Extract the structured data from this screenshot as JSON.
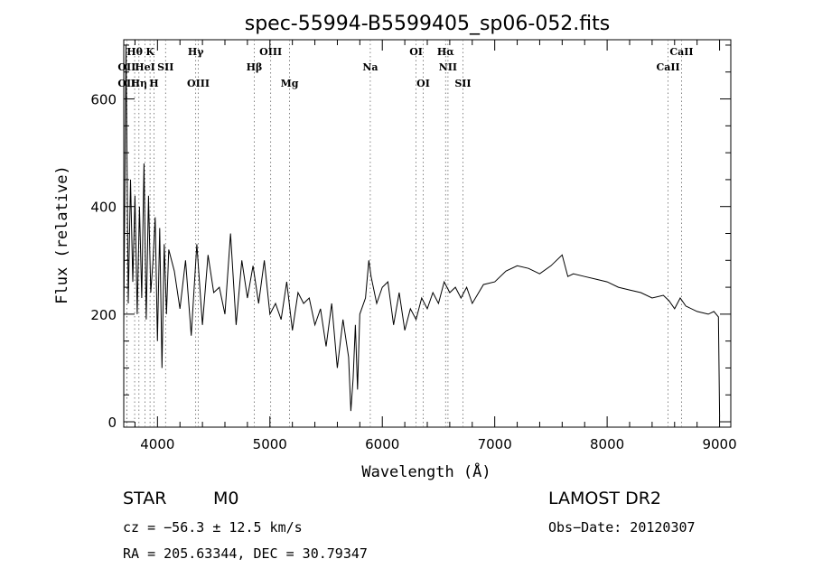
{
  "chart_data": {
    "type": "line",
    "title": "spec-55994-B5599405_sp06-052.fits",
    "xlabel": "Wavelength (Å)",
    "ylabel": "Flux (relative)",
    "xlim": [
      3700,
      9100
    ],
    "ylim": [
      -10,
      710
    ],
    "xticks": [
      4000,
      5000,
      6000,
      7000,
      8000,
      9000
    ],
    "yticks": [
      0,
      200,
      400,
      600
    ],
    "grid": false,
    "series": [
      {
        "x": [
          3700,
          3720,
          3740,
          3760,
          3780,
          3800,
          3820,
          3840,
          3860,
          3880,
          3900,
          3920,
          3940,
          3960,
          3980,
          4000,
          4020,
          4040,
          4060,
          4080,
          4100,
          4150,
          4200,
          4250,
          4300,
          4350,
          4400,
          4450,
          4500,
          4550,
          4600,
          4650,
          4700,
          4750,
          4800,
          4850,
          4900,
          4950,
          5000,
          5050,
          5100,
          5150,
          5200,
          5250,
          5300,
          5350,
          5400,
          5450,
          5500,
          5550,
          5600,
          5650,
          5700,
          5720,
          5740,
          5760,
          5780,
          5800,
          5850,
          5880,
          5900,
          5950,
          6000,
          6050,
          6100,
          6150,
          6200,
          6250,
          6300,
          6350,
          6400,
          6450,
          6500,
          6550,
          6600,
          6650,
          6700,
          6750,
          6800,
          6900,
          7000,
          7100,
          7200,
          7300,
          7400,
          7500,
          7600,
          7650,
          7700,
          7800,
          7900,
          8000,
          8100,
          8200,
          8300,
          8400,
          8500,
          8550,
          8600,
          8650,
          8700,
          8800,
          8900,
          8950,
          8990,
          9000
        ],
        "y": [
          180,
          700,
          220,
          450,
          260,
          420,
          200,
          400,
          230,
          480,
          190,
          420,
          240,
          300,
          380,
          150,
          360,
          100,
          330,
          200,
          320,
          280,
          210,
          300,
          160,
          330,
          180,
          310,
          240,
          250,
          200,
          350,
          180,
          300,
          230,
          290,
          220,
          300,
          200,
          220,
          190,
          260,
          170,
          240,
          220,
          230,
          180,
          210,
          140,
          220,
          100,
          190,
          120,
          20,
          80,
          180,
          60,
          200,
          230,
          300,
          270,
          220,
          250,
          260,
          180,
          240,
          170,
          210,
          190,
          230,
          210,
          240,
          220,
          260,
          240,
          250,
          230,
          250,
          220,
          255,
          260,
          280,
          290,
          285,
          275,
          290,
          310,
          270,
          275,
          270,
          265,
          260,
          250,
          245,
          240,
          230,
          235,
          225,
          210,
          230,
          215,
          205,
          200,
          205,
          195,
          10
        ]
      }
    ],
    "annotations": {
      "lines": [
        {
          "label": "Hθ",
          "x": 3797,
          "row": 0
        },
        {
          "label": "OII",
          "x": 3727,
          "row": 1
        },
        {
          "label": "OII",
          "x": 3727,
          "row": 2
        },
        {
          "label": "Hη",
          "x": 3835,
          "row": 2
        },
        {
          "label": "K",
          "x": 3934,
          "row": 0
        },
        {
          "label": "HeI",
          "x": 3889,
          "row": 1
        },
        {
          "label": "SII",
          "x": 4072,
          "row": 1
        },
        {
          "label": "H",
          "x": 3969,
          "row": 2
        },
        {
          "label": "Hγ",
          "x": 4340,
          "row": 0
        },
        {
          "label": "OIII",
          "x": 4363,
          "row": 2
        },
        {
          "label": "Hβ",
          "x": 4861,
          "row": 1
        },
        {
          "label": "OIII",
          "x": 5007,
          "row": 0
        },
        {
          "label": "Mg",
          "x": 5175,
          "row": 2
        },
        {
          "label": "Na",
          "x": 5893,
          "row": 1
        },
        {
          "label": "OI",
          "x": 6300,
          "row": 0
        },
        {
          "label": "OI",
          "x": 6364,
          "row": 2
        },
        {
          "label": "Hα",
          "x": 6563,
          "row": 0
        },
        {
          "label": "NII",
          "x": 6584,
          "row": 1
        },
        {
          "label": "SII",
          "x": 6717,
          "row": 2
        },
        {
          "label": "CaII",
          "x": 8662,
          "row": 0
        },
        {
          "label": "CaII",
          "x": 8542,
          "row": 1
        }
      ]
    }
  },
  "info": {
    "object_class": "STAR",
    "subclass": "M0",
    "survey": "LAMOST DR2",
    "cz": "cz = −56.3 ± 12.5 km/s",
    "obs_date": "Obs−Date: 20120307",
    "radec": "RA = 205.63344, DEC =  30.79347"
  }
}
